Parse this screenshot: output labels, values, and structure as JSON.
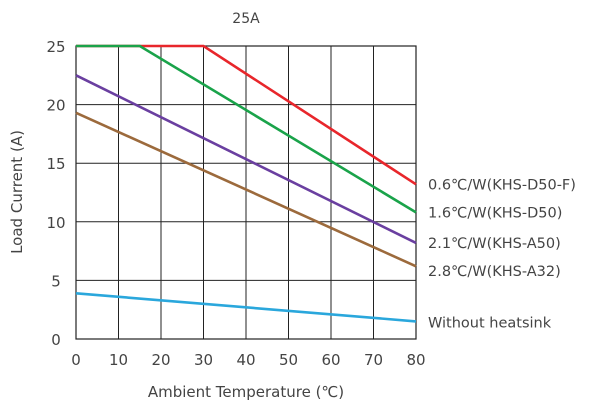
{
  "chart_data": {
    "type": "line",
    "title": "25A",
    "xlabel": "Ambient Temperature (℃)",
    "ylabel": "Load Current (A)",
    "xlim": [
      0,
      80
    ],
    "ylim": [
      0,
      25
    ],
    "x_ticks": [
      0,
      10,
      20,
      30,
      40,
      50,
      60,
      70,
      80
    ],
    "y_ticks": [
      0,
      5,
      10,
      15,
      20,
      25
    ],
    "x_tick_labels": [
      "0",
      "10",
      "20",
      "30",
      "40",
      "50",
      "60",
      "70",
      "80"
    ],
    "y_tick_labels": [
      "0",
      "5",
      "10",
      "15",
      "20",
      "25"
    ],
    "grid": true,
    "legend": "inline-right",
    "series": [
      {
        "name": "0.6℃/W(KHS-D50-F)",
        "color": "#e8262b",
        "points": [
          [
            0,
            25
          ],
          [
            30,
            25
          ],
          [
            80,
            13.2
          ]
        ]
      },
      {
        "name": "1.6℃/W(KHS-D50)",
        "color": "#1aa34a",
        "points": [
          [
            0,
            25
          ],
          [
            15,
            25
          ],
          [
            80,
            10.8
          ]
        ]
      },
      {
        "name": "2.1℃/W(KHS-A50)",
        "color": "#6a3fa0",
        "points": [
          [
            0,
            22.5
          ],
          [
            80,
            8.2
          ]
        ]
      },
      {
        "name": "2.8℃/W(KHS-A32)",
        "color": "#9c6a3c",
        "points": [
          [
            0,
            19.3
          ],
          [
            80,
            6.2
          ]
        ]
      },
      {
        "name": "Without heatsink",
        "color": "#2aa7dc",
        "points": [
          [
            0,
            3.9
          ],
          [
            80,
            1.5
          ]
        ]
      }
    ]
  }
}
